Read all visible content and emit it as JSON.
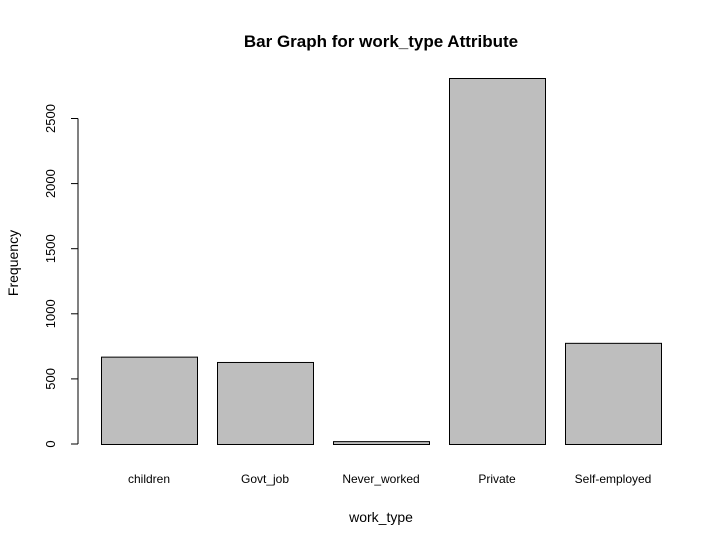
{
  "chart_data": {
    "type": "bar",
    "title": "Bar Graph for work_type Attribute",
    "xlabel": "work_type",
    "ylabel": "Frequency",
    "categories": [
      "children",
      "Govt_job",
      "Never_worked",
      "Private",
      "Self-employed"
    ],
    "values": [
      671,
      630,
      22,
      2811,
      777
    ],
    "yticks": [
      "0",
      "500",
      "1000",
      "1500",
      "2000",
      "2500"
    ],
    "ylim": [
      0,
      2811
    ],
    "bar_color": "#bebebe",
    "edge_color": "#000000",
    "grid": false
  }
}
